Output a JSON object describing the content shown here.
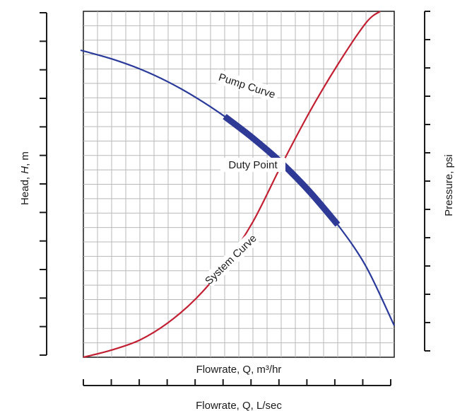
{
  "chart_data": {
    "type": "line",
    "title": "",
    "xlabel": "Flowrate, Q, m³/hr",
    "x2label": "Flowrate, Q, L/sec",
    "ylabel_parts": [
      "Head, ",
      "H",
      ", m"
    ],
    "y2label": "Pressure, psi",
    "xlim": [
      0,
      22
    ],
    "ylim": [
      0,
      24
    ],
    "grid": true,
    "series": [
      {
        "name": "Pump Curve",
        "color": "#2a3a9a",
        "x": [
          -0.2,
          2,
          4,
          6,
          8,
          10,
          12,
          14,
          16,
          18,
          20,
          22
        ],
        "y": [
          21.3,
          20.7,
          20.0,
          19.1,
          18.0,
          16.7,
          15.2,
          13.5,
          11.5,
          9.2,
          6.3,
          2.2
        ]
      },
      {
        "name": "System Curve",
        "color": "#c22032",
        "x": [
          0,
          2,
          4,
          6,
          8,
          10,
          12,
          14,
          16,
          18,
          20,
          21
        ],
        "y": [
          0,
          0.5,
          1.2,
          2.4,
          4.1,
          6.4,
          9.4,
          13.3,
          17.0,
          20.3,
          23.2,
          24
        ]
      }
    ],
    "operating_range": {
      "x": [
        9,
        19
      ],
      "color": "#2e3a96"
    },
    "annotations": [
      {
        "text": "Pump Curve",
        "x": 11.5,
        "y": 18.6,
        "rotate": 18
      },
      {
        "text": "System Curve",
        "x": 10.6,
        "y": 6.6,
        "rotate": -44
      },
      {
        "text": "Duty Point",
        "x": 12.0,
        "y": 13.1,
        "rotate": 0
      }
    ],
    "duty_point": {
      "x": 15.9,
      "y": 13.4
    },
    "left_axis_ticks": 12,
    "right_axis_ticks": 12,
    "bottom_axis_ticks": 11
  }
}
